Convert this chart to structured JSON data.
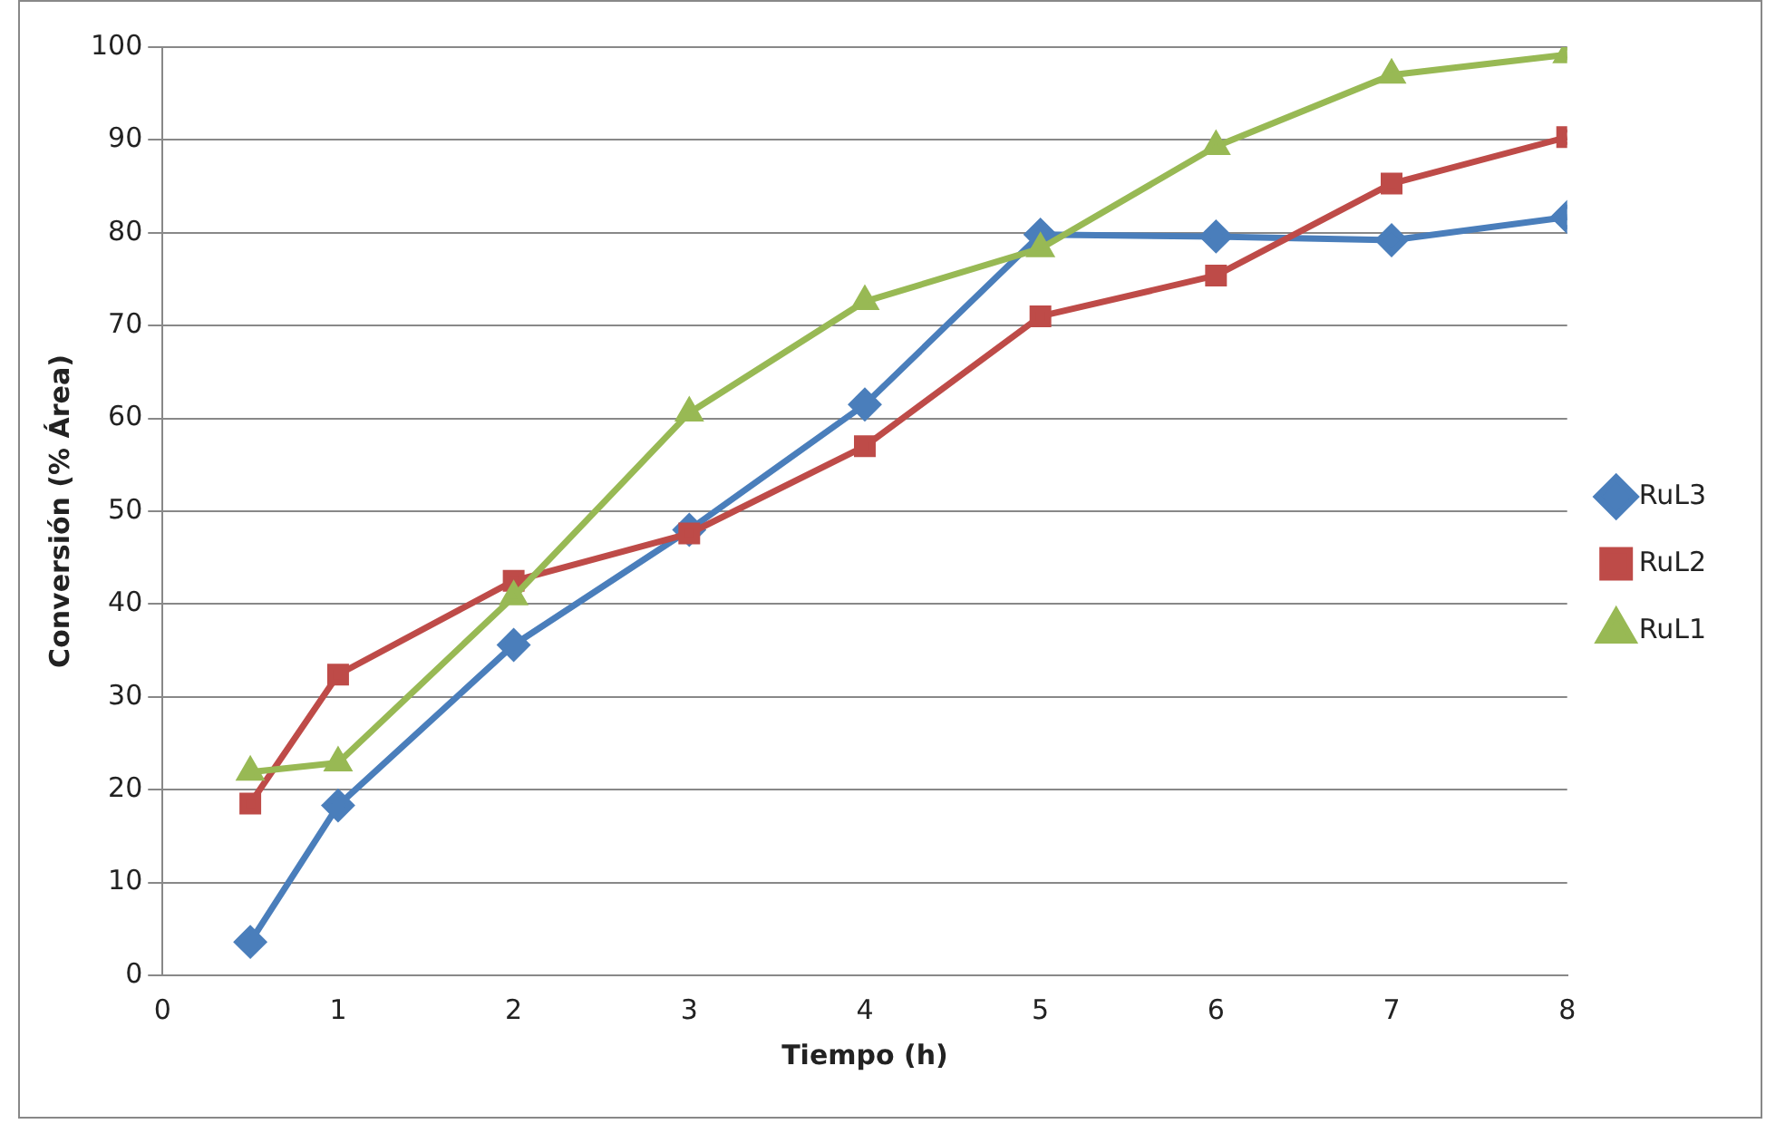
{
  "chart_data": {
    "type": "line",
    "xlabel": "Tiempo (h)",
    "ylabel": "Conversión (% Área)",
    "xlim": [
      0,
      8
    ],
    "xticks": [
      0,
      1,
      2,
      3,
      4,
      5,
      6,
      7,
      8
    ],
    "ylim": [
      0,
      100
    ],
    "yticks": [
      0,
      10,
      20,
      30,
      40,
      50,
      60,
      70,
      80,
      90,
      100
    ],
    "grid": "y",
    "legend": "right",
    "line_style": "solid",
    "series": [
      {
        "name": "RuL3",
        "color": "#4a7ebb",
        "marker": "diamond",
        "x": [
          0.5,
          1,
          2,
          3,
          4,
          5,
          6,
          7,
          8
        ],
        "values": [
          3.6,
          18.3,
          35.6,
          48,
          61.5,
          79.8,
          79.6,
          79.2,
          81.7
        ]
      },
      {
        "name": "RuL2",
        "color": "#be4b48",
        "marker": "square",
        "x": [
          0.5,
          1,
          2,
          3,
          4,
          5,
          6,
          7,
          8
        ],
        "values": [
          18.5,
          32.4,
          42.5,
          47.6,
          57,
          71,
          75.4,
          85.3,
          90.3
        ]
      },
      {
        "name": "RuL1",
        "color": "#98b954",
        "marker": "triangle",
        "x": [
          0.5,
          1,
          2,
          3,
          4,
          5,
          6,
          7,
          8
        ],
        "values": [
          21.9,
          22.9,
          40.8,
          60.6,
          72.6,
          78.3,
          89.3,
          97,
          99.2
        ]
      }
    ]
  }
}
